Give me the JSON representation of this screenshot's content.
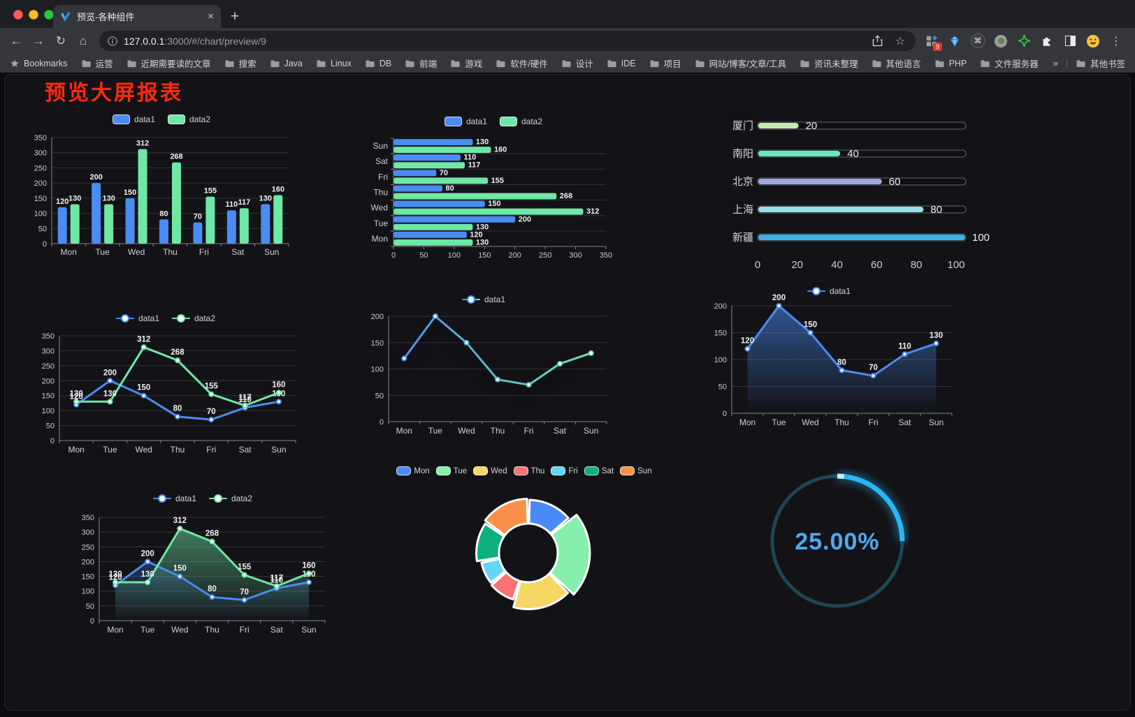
{
  "browser": {
    "tab_title": "预览-各种组件",
    "url_host": "127.0.0.1",
    "url_rest": ":3000/#/chart/preview/9",
    "new_tab_label": "+",
    "close_tab_label": "×",
    "back_label": "←",
    "forward_label": "→",
    "reload_label": "↻",
    "home_label": "⌂",
    "star_label": "☆",
    "menu_dots_label": "⋮",
    "command_glyph": "⌘",
    "extension_badge": "9",
    "bookmarks_label": "Bookmarks",
    "bookmarks": [
      "运营",
      "近期需要读的文章",
      "搜索",
      "Java",
      "Linux",
      "DB",
      "前端",
      "游戏",
      "软件/硬件",
      "设计",
      "IDE",
      "项目",
      "网站/博客/文章/工具",
      "资讯未整理",
      "其他语言",
      "PHP",
      "文件服务器"
    ],
    "overflow_chevron": "»",
    "other_bookmarks": "其他书签"
  },
  "page": {
    "title": "预览大屏报表",
    "title_color": "#fe2a0e"
  },
  "chart_data": [
    {
      "id": "bar-grouped",
      "type": "bar",
      "categories": [
        "Mon",
        "Tue",
        "Wed",
        "Thu",
        "Fri",
        "Sat",
        "Sun"
      ],
      "series": [
        {
          "name": "data1",
          "color": "#4a8cf2",
          "values": [
            120,
            200,
            150,
            80,
            70,
            110,
            130
          ]
        },
        {
          "name": "data2",
          "color": "#6fe7a6",
          "values": [
            130,
            130,
            312,
            268,
            155,
            117,
            160
          ]
        }
      ],
      "yticks": [
        0,
        50,
        100,
        150,
        200,
        250,
        300,
        350
      ],
      "legend_position": "top",
      "show_labels": true,
      "grid": true
    },
    {
      "id": "bar-horizontal",
      "type": "bar-horizontal",
      "categories_top_to_bottom": [
        "Sun",
        "Sat",
        "Fri",
        "Thu",
        "Wed",
        "Tue",
        "Mon"
      ],
      "series": [
        {
          "name": "data1",
          "color": "#4a8cf2",
          "values": [
            130,
            110,
            70,
            80,
            150,
            200,
            120
          ]
        },
        {
          "name": "data2",
          "color": "#6fe7a6",
          "values": [
            160,
            117,
            155,
            268,
            312,
            130,
            130
          ]
        }
      ],
      "xticks": [
        0,
        50,
        100,
        150,
        200,
        250,
        300,
        350
      ],
      "legend_position": "top",
      "show_labels": true,
      "grid": true
    },
    {
      "id": "progress",
      "type": "progress-bars",
      "rows": [
        {
          "label": "厦门",
          "value": 20,
          "color": "#c4ebad"
        },
        {
          "label": "南阳",
          "value": 40,
          "color": "#6be6c1"
        },
        {
          "label": "北京",
          "value": 60,
          "color": "#a0a7e6"
        },
        {
          "label": "上海",
          "value": 80,
          "color": "#96dee8"
        },
        {
          "label": "新疆",
          "value": 100,
          "color": "#3fb1e3"
        }
      ],
      "xticks": [
        0,
        20,
        40,
        60,
        80,
        100
      ],
      "xlim": [
        0,
        100
      ]
    },
    {
      "id": "line-two",
      "type": "line",
      "categories": [
        "Mon",
        "Tue",
        "Wed",
        "Thu",
        "Fri",
        "Sat",
        "Sun"
      ],
      "series": [
        {
          "name": "data1",
          "color": "#4a8cf2",
          "values": [
            120,
            200,
            150,
            80,
            70,
            110,
            130
          ]
        },
        {
          "name": "data2",
          "color": "#6fe7a6",
          "values": [
            130,
            130,
            312,
            268,
            155,
            117,
            160
          ]
        }
      ],
      "yticks": [
        0,
        50,
        100,
        150,
        200,
        250,
        300,
        350
      ],
      "legend_position": "top",
      "show_labels": true
    },
    {
      "id": "line-gradient",
      "type": "line",
      "categories": [
        "Mon",
        "Tue",
        "Wed",
        "Thu",
        "Fri",
        "Sat",
        "Sun"
      ],
      "series": [
        {
          "name": "data1",
          "gradient": [
            "#4a8cf2",
            "#6fe7a6"
          ],
          "values": [
            120,
            200,
            150,
            80,
            70,
            110,
            130
          ],
          "shadow": true
        }
      ],
      "yticks": [
        0,
        50,
        100,
        150,
        200
      ],
      "legend_position": "top",
      "show_labels": false
    },
    {
      "id": "line-area-blue",
      "type": "line",
      "categories": [
        "Mon",
        "Tue",
        "Wed",
        "Thu",
        "Fri",
        "Sat",
        "Sun"
      ],
      "series": [
        {
          "name": "data1",
          "color": "#4a8cf2",
          "area": 0.55,
          "values": [
            120,
            200,
            150,
            80,
            70,
            110,
            130
          ]
        }
      ],
      "yticks": [
        0,
        50,
        100,
        150,
        200
      ],
      "legend_position": "top",
      "show_labels": true
    },
    {
      "id": "line-area-two",
      "type": "line",
      "categories": [
        "Mon",
        "Tue",
        "Wed",
        "Thu",
        "Fri",
        "Sat",
        "Sun"
      ],
      "series": [
        {
          "name": "data1",
          "color": "#4a8cf2",
          "area": 0.28,
          "values": [
            120,
            200,
            150,
            80,
            70,
            110,
            130
          ]
        },
        {
          "name": "data2",
          "color": "#6fe7a6",
          "area": 0.5,
          "values": [
            130,
            130,
            312,
            268,
            155,
            117,
            160
          ]
        }
      ],
      "yticks": [
        0,
        50,
        100,
        150,
        200,
        250,
        300,
        350
      ],
      "legend_position": "top",
      "show_labels": true
    },
    {
      "id": "pie-rose",
      "type": "pie",
      "rose": true,
      "categories": [
        "Mon",
        "Tue",
        "Wed",
        "Thu",
        "Fri",
        "Sat",
        "Sun"
      ],
      "values": [
        120,
        200,
        150,
        80,
        70,
        110,
        130
      ],
      "colors": [
        "#4a8af4",
        "#86efad",
        "#f6d763",
        "#fa7274",
        "#63d5f7",
        "#0cb07e",
        "#f9914a"
      ],
      "legend_position": "top"
    },
    {
      "id": "gauge",
      "type": "gauge",
      "value": 25,
      "display": "25.00%",
      "progress_color": "#2ab6f4",
      "track_color": "#1d4756",
      "text_color": "#4dabee"
    }
  ]
}
